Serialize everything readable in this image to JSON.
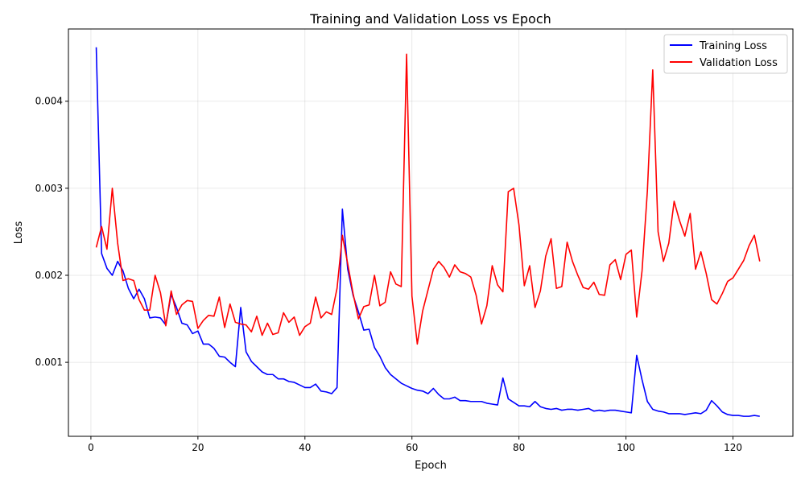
{
  "chart_data": {
    "type": "line",
    "title": "Training and Validation Loss vs Epoch",
    "xlabel": "Epoch",
    "ylabel": "Loss",
    "xlim": [
      -4.2,
      131.2
    ],
    "ylim": [
      0.00015,
      0.00483
    ],
    "xticks": [
      0,
      20,
      40,
      60,
      80,
      100,
      120
    ],
    "yticks": [
      0.001,
      0.002,
      0.003,
      0.004
    ],
    "ytick_labels": [
      "0.001",
      "0.002",
      "0.003",
      "0.004"
    ],
    "grid": true,
    "legend_position": "top-right",
    "x": [
      1,
      2,
      3,
      4,
      5,
      6,
      7,
      8,
      9,
      10,
      11,
      12,
      13,
      14,
      15,
      16,
      17,
      18,
      19,
      20,
      21,
      22,
      23,
      24,
      25,
      26,
      27,
      28,
      29,
      30,
      31,
      32,
      33,
      34,
      35,
      36,
      37,
      38,
      39,
      40,
      41,
      42,
      43,
      44,
      45,
      46,
      47,
      48,
      49,
      50,
      51,
      52,
      53,
      54,
      55,
      56,
      57,
      58,
      59,
      60,
      61,
      62,
      63,
      64,
      65,
      66,
      67,
      68,
      69,
      70,
      71,
      72,
      73,
      74,
      75,
      76,
      77,
      78,
      79,
      80,
      81,
      82,
      83,
      84,
      85,
      86,
      87,
      88,
      89,
      90,
      91,
      92,
      93,
      94,
      95,
      96,
      97,
      98,
      99,
      100,
      101,
      102,
      103,
      104,
      105,
      106,
      107,
      108,
      109,
      110,
      111,
      112,
      113,
      114,
      115,
      116,
      117,
      118,
      119,
      120,
      121,
      122,
      123,
      124,
      125
    ],
    "series": [
      {
        "name": "Training Loss",
        "color": "#0000ff",
        "values": [
          0.00462,
          0.00225,
          0.00208,
          0.002,
          0.00216,
          0.00205,
          0.00185,
          0.00173,
          0.00184,
          0.00173,
          0.00151,
          0.00152,
          0.00151,
          0.00143,
          0.00178,
          0.00163,
          0.00145,
          0.00143,
          0.00133,
          0.00136,
          0.00121,
          0.00121,
          0.00116,
          0.00107,
          0.00106,
          0.001,
          0.00095,
          0.00163,
          0.00112,
          0.00101,
          0.00095,
          0.00089,
          0.00086,
          0.00086,
          0.00081,
          0.00081,
          0.00078,
          0.00077,
          0.00074,
          0.00071,
          0.00071,
          0.00075,
          0.00067,
          0.00066,
          0.00064,
          0.00071,
          0.00276,
          0.00207,
          0.00177,
          0.00158,
          0.00137,
          0.00138,
          0.00117,
          0.00107,
          0.00094,
          0.00086,
          0.00081,
          0.00076,
          0.00073,
          0.0007,
          0.00068,
          0.00067,
          0.00064,
          0.0007,
          0.00063,
          0.00058,
          0.00058,
          0.0006,
          0.00056,
          0.00056,
          0.00055,
          0.00055,
          0.00055,
          0.00053,
          0.00052,
          0.00051,
          0.00082,
          0.00058,
          0.00054,
          0.0005,
          0.0005,
          0.00049,
          0.00055,
          0.00049,
          0.00047,
          0.00046,
          0.00047,
          0.00045,
          0.00046,
          0.00046,
          0.00045,
          0.00046,
          0.00047,
          0.00044,
          0.00045,
          0.00044,
          0.00045,
          0.00045,
          0.00044,
          0.00043,
          0.00042,
          0.00108,
          0.0008,
          0.00055,
          0.00046,
          0.00044,
          0.00043,
          0.00041,
          0.00041,
          0.00041,
          0.0004,
          0.00041,
          0.00042,
          0.00041,
          0.00045,
          0.00056,
          0.0005,
          0.00043,
          0.0004,
          0.00039,
          0.00039,
          0.00038,
          0.00038,
          0.00039,
          0.00038
        ]
      },
      {
        "name": "Validation Loss",
        "color": "#ff0000",
        "values": [
          0.00232,
          0.00256,
          0.0023,
          0.003,
          0.00237,
          0.00194,
          0.00196,
          0.00194,
          0.00172,
          0.0016,
          0.0016,
          0.002,
          0.0018,
          0.00142,
          0.00182,
          0.00155,
          0.00166,
          0.00171,
          0.0017,
          0.00139,
          0.00148,
          0.00154,
          0.00153,
          0.00175,
          0.0014,
          0.00167,
          0.00146,
          0.00144,
          0.00143,
          0.00135,
          0.00153,
          0.00131,
          0.00145,
          0.00132,
          0.00134,
          0.00157,
          0.00146,
          0.00152,
          0.00131,
          0.00141,
          0.00145,
          0.00175,
          0.00151,
          0.00158,
          0.00155,
          0.00185,
          0.00246,
          0.00213,
          0.00179,
          0.0015,
          0.00164,
          0.00166,
          0.002,
          0.00165,
          0.00169,
          0.00204,
          0.0019,
          0.00187,
          0.00454,
          0.00176,
          0.00121,
          0.00159,
          0.00183,
          0.00207,
          0.00216,
          0.00209,
          0.00198,
          0.00212,
          0.00204,
          0.00202,
          0.00198,
          0.00177,
          0.00144,
          0.00165,
          0.00211,
          0.00189,
          0.00181,
          0.00296,
          0.003,
          0.00258,
          0.00188,
          0.00211,
          0.00163,
          0.00182,
          0.00222,
          0.00242,
          0.00185,
          0.00187,
          0.00238,
          0.00216,
          0.002,
          0.00186,
          0.00184,
          0.00192,
          0.00178,
          0.00177,
          0.00212,
          0.00218,
          0.00195,
          0.00224,
          0.00229,
          0.00152,
          0.00205,
          0.00297,
          0.00436,
          0.0025,
          0.00216,
          0.00237,
          0.00285,
          0.00263,
          0.00245,
          0.00271,
          0.00207,
          0.00227,
          0.00202,
          0.00172,
          0.00167,
          0.00179,
          0.00193,
          0.00197,
          0.00207,
          0.00217,
          0.00234,
          0.00246,
          0.00216
        ]
      }
    ]
  }
}
